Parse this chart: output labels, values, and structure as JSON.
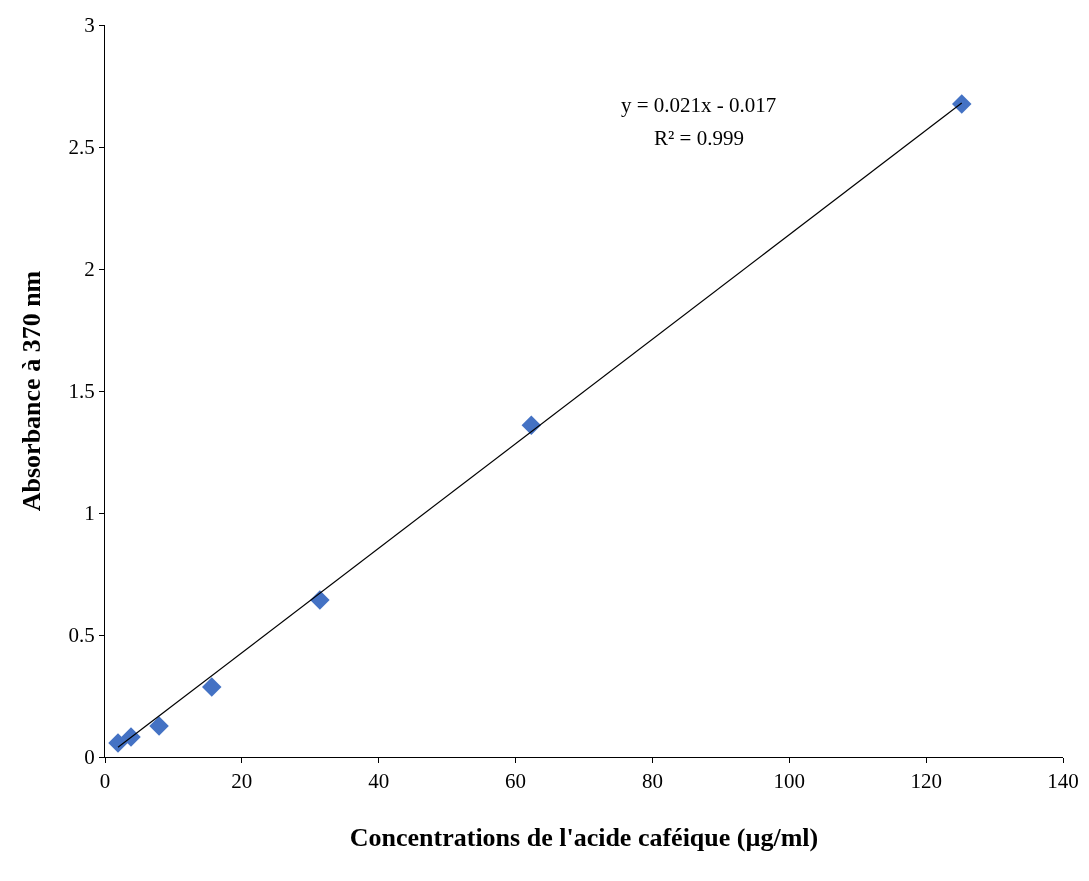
{
  "chart_data": {
    "type": "scatter",
    "xlabel": "Concentrations de l'acide caféique (µg/ml)",
    "ylabel": "Absorbance à 370 nm",
    "xlim": [
      0,
      140
    ],
    "xticks": [
      0,
      20,
      40,
      60,
      80,
      100,
      120,
      140
    ],
    "ylim": [
      0,
      3
    ],
    "yticks": [
      0,
      0.5,
      1,
      1.5,
      2,
      2.5,
      3
    ],
    "grid": false,
    "legend": false,
    "series": [
      {
        "marker": "diamond",
        "color": "#4472c4",
        "x": [
          1.9,
          3.8,
          7.9,
          15.6,
          31.4,
          62.3,
          125.2
        ],
        "values": [
          0.057,
          0.082,
          0.127,
          0.287,
          0.643,
          1.36,
          2.676
        ]
      },
      {
        "type": "line",
        "marker": "none",
        "color": "#000000",
        "line_style": "solid",
        "x": [
          1.9,
          125.2
        ],
        "values": [
          0.04,
          2.68
        ]
      }
    ],
    "annotations": [
      "y = 0.021x - 0.017",
      "R² = 0.999"
    ]
  }
}
